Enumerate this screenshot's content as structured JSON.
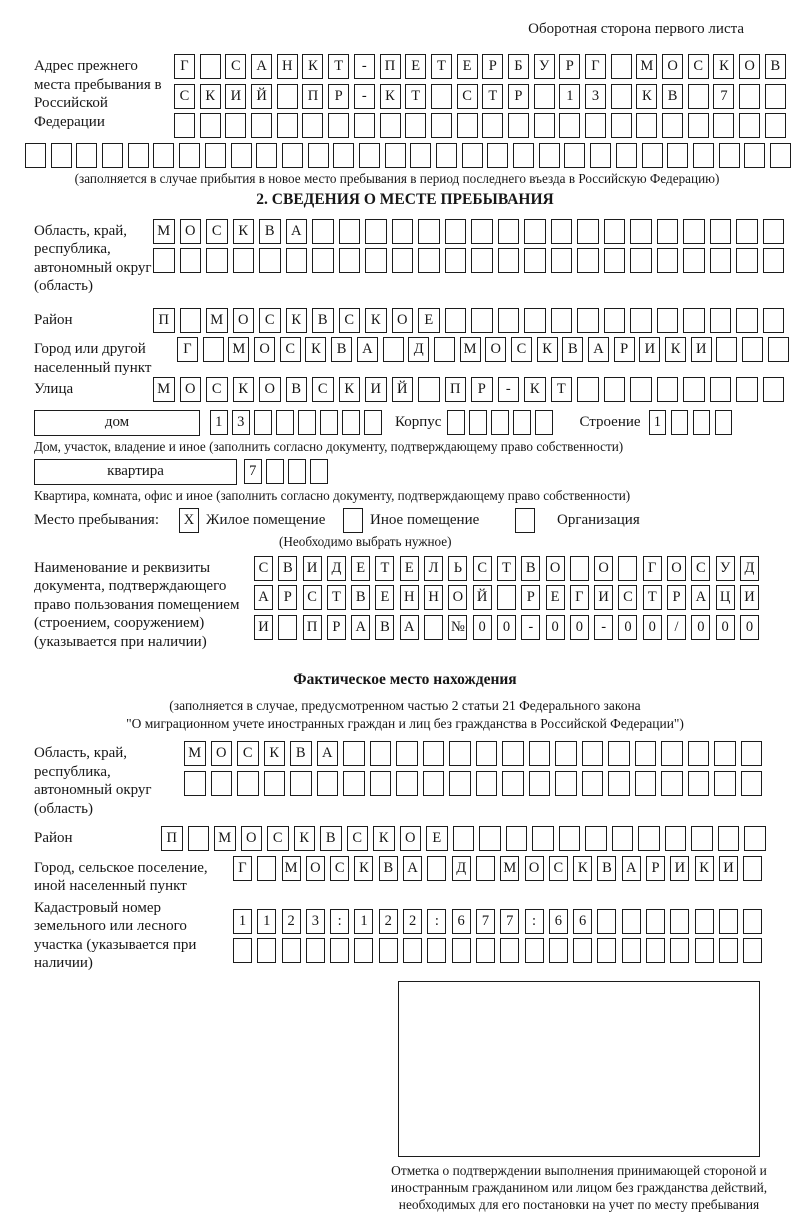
{
  "header": {
    "note": "Оборотная сторона первого листа"
  },
  "prev_address": {
    "label": "Адрес прежнего места пребывания в Российской Федерации",
    "rows": [
      {
        "text": "Г САНКТ-ПЕТЕРБУРГ МОСКОВ",
        "count": 24
      },
      {
        "text": "СКИЙ ПР-КТ СТР 13 КВ 7",
        "count": 24
      },
      {
        "text": "",
        "count": 24
      },
      {
        "text": "",
        "count": 30
      }
    ],
    "note": "(заполняется в случае прибытия в новое место пребывания в период последнего въезда в Российскую Федерацию)"
  },
  "section2": {
    "title": "2. СВЕДЕНИЯ О МЕСТЕ ПРЕБЫВАНИЯ",
    "region": {
      "label": "Область, край, республика, автономный округ (область)",
      "rows": [
        {
          "text": "МОСКВА",
          "count": 24
        },
        {
          "text": "",
          "count": 24
        }
      ]
    },
    "district": {
      "label": "Район",
      "rows": [
        {
          "text": "П МОСКВСКОЕ",
          "count": 24
        }
      ]
    },
    "city": {
      "label": "Город или другой населенный пункт",
      "rows": [
        {
          "text": "Г МОСКВА Д МОСКВАРИКИ",
          "count": 24
        }
      ]
    },
    "street": {
      "label": "Улица",
      "rows": [
        {
          "text": "МОСКОВСКИЙ ПР-КТ",
          "count": 24
        }
      ]
    },
    "house": {
      "box_label": "дом",
      "cells": {
        "text": "13",
        "count": 8
      },
      "korpus_label": "Корпус",
      "korpus_cells": {
        "text": "",
        "count": 5
      },
      "stroenie_label": "Строение",
      "stroenie_cells": {
        "text": "1",
        "count": 4
      },
      "note": "Дом, участок, владение и иное (заполнить согласно документу, подтверждающему право собственности)"
    },
    "apartment": {
      "box_label": "квартира",
      "cells": {
        "text": "7",
        "count": 4
      },
      "note": "Квартира, комната, офис и иное (заполнить согласно документу, подтверждающему право собственности)"
    },
    "stay": {
      "label": "Место пребывания:",
      "options": [
        {
          "mark": "X",
          "label": "Жилое помещение"
        },
        {
          "mark": "",
          "label": "Иное помещение"
        },
        {
          "mark": "",
          "label": "Организация"
        }
      ],
      "note": "(Необходимо выбрать нужное)"
    },
    "document": {
      "label": "Наименование и реквизиты документа, подтверждающего право пользования помещением (строением, сооружением) (указывается при наличии)",
      "rows": [
        {
          "text": "СВИДЕТЕЛЬСТВО О ГОСУД",
          "count": 21
        },
        {
          "text": "АРСТВЕННОЙ РЕГИСТРАЦИ",
          "count": 21
        },
        {
          "text": "И ПРАВА №00-00-00/000",
          "count": 21
        }
      ]
    }
  },
  "actual_location": {
    "title": "Фактическое место нахождения",
    "note_line1": "(заполняется в случае, предусмотренном частью 2 статьи 21 Федерального закона",
    "note_line2": "\"О миграционном учете иностранных граждан и лиц без гражданства в Российской Федерации\")",
    "region": {
      "label": "Область, край, республика, автономный округ (область)",
      "rows": [
        {
          "text": "МОСКВА",
          "count": 22
        },
        {
          "text": "",
          "count": 22
        }
      ]
    },
    "district": {
      "label": "Район",
      "rows": [
        {
          "text": "П МОСКВСКОЕ",
          "count": 23
        }
      ]
    },
    "city": {
      "label": "Город, сельское поселение, иной населенный пункт",
      "rows": [
        {
          "text": "Г МОСКВА Д МОСКВАРИКИ",
          "count": 22
        }
      ]
    },
    "cadastre": {
      "label": "Кадастровый номер земельного или лесного участка (указывается при наличии)",
      "rows": [
        {
          "text": "1123:122:677:66",
          "count": 22
        },
        {
          "text": "",
          "count": 22
        }
      ]
    },
    "stamp_note": "Отметка о подтверждении выполнения принимающей стороной и иностранным гражданином или лицом без гражданства действий, необходимых для его постановки на учет по месту пребывания"
  }
}
